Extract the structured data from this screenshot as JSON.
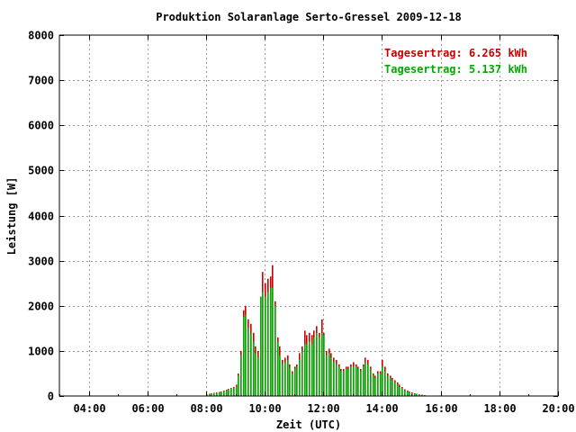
{
  "chart_data": {
    "type": "bar",
    "title": "Produktion Solaranlage Serto-Gressel 2009-12-18",
    "xlabel": "Zeit (UTC)",
    "ylabel": "Leistung [W]",
    "xlim": [
      "03:00",
      "20:00"
    ],
    "ylim": [
      0,
      8000
    ],
    "grid": true,
    "legend_placement": "top-right",
    "x_ticks": [
      "04:00",
      "06:00",
      "08:00",
      "10:00",
      "12:00",
      "14:00",
      "16:00",
      "18:00",
      "20:00"
    ],
    "y_ticks": [
      "0",
      "1000",
      "2000",
      "3000",
      "4000",
      "5000",
      "6000",
      "7000",
      "8000"
    ],
    "annotations": [
      {
        "text": "Tagesertrag: 6.265 kWh",
        "color": "#cc0000"
      },
      {
        "text": "Tagesertrag: 5.137 kWh",
        "color": "#00aa00"
      }
    ],
    "x": [
      "08:00",
      "08:05",
      "08:10",
      "08:15",
      "08:20",
      "08:25",
      "08:30",
      "08:35",
      "08:40",
      "08:45",
      "08:50",
      "08:55",
      "09:00",
      "09:05",
      "09:10",
      "09:15",
      "09:20",
      "09:25",
      "09:30",
      "09:35",
      "09:40",
      "09:45",
      "09:50",
      "09:55",
      "10:00",
      "10:05",
      "10:10",
      "10:15",
      "10:20",
      "10:25",
      "10:30",
      "10:35",
      "10:40",
      "10:45",
      "10:50",
      "10:55",
      "11:00",
      "11:05",
      "11:10",
      "11:15",
      "11:20",
      "11:25",
      "11:30",
      "11:35",
      "11:40",
      "11:45",
      "11:50",
      "11:55",
      "12:00",
      "12:05",
      "12:10",
      "12:15",
      "12:20",
      "12:25",
      "12:30",
      "12:35",
      "12:40",
      "12:45",
      "12:50",
      "12:55",
      "13:00",
      "13:05",
      "13:10",
      "13:15",
      "13:20",
      "13:25",
      "13:30",
      "13:35",
      "13:40",
      "13:45",
      "13:50",
      "13:55",
      "14:00",
      "14:05",
      "14:10",
      "14:15",
      "14:20",
      "14:25",
      "14:30",
      "14:35",
      "14:40",
      "14:45",
      "14:50",
      "14:55",
      "15:00",
      "15:05",
      "15:10",
      "15:15",
      "15:20",
      "15:25",
      "15:30",
      "15:35",
      "15:40"
    ],
    "series": [
      {
        "color": "#cc0000",
        "values": [
          40,
          50,
          60,
          70,
          80,
          90,
          100,
          120,
          140,
          160,
          180,
          200,
          250,
          500,
          1000,
          1900,
          2000,
          1700,
          1600,
          1400,
          1100,
          1000,
          2200,
          2750,
          2500,
          2600,
          2650,
          2900,
          2100,
          1300,
          1100,
          800,
          850,
          900,
          700,
          550,
          650,
          700,
          950,
          1100,
          1450,
          1350,
          1400,
          1350,
          1450,
          1550,
          1400,
          1700,
          1400,
          1000,
          1050,
          950,
          850,
          800,
          700,
          600,
          600,
          650,
          650,
          700,
          750,
          700,
          650,
          600,
          700,
          850,
          800,
          650,
          500,
          450,
          550,
          550,
          800,
          650,
          500,
          450,
          400,
          350,
          300,
          250,
          200,
          150,
          120,
          100,
          80,
          60,
          50,
          40,
          30,
          20,
          10,
          5,
          0
        ]
      },
      {
        "color": "#00aa00",
        "values": [
          35,
          45,
          55,
          65,
          70,
          80,
          90,
          110,
          125,
          145,
          160,
          180,
          220,
          450,
          900,
          1750,
          1800,
          1500,
          1400,
          1200,
          950,
          850,
          2200,
          2300,
          2200,
          2300,
          2400,
          2400,
          2000,
          1200,
          900,
          700,
          750,
          800,
          650,
          500,
          600,
          650,
          800,
          1000,
          1150,
          1150,
          1200,
          1150,
          1300,
          1400,
          1300,
          1400,
          1350,
          900,
          950,
          850,
          750,
          700,
          650,
          550,
          550,
          600,
          600,
          650,
          650,
          650,
          600,
          550,
          650,
          750,
          700,
          600,
          450,
          400,
          500,
          500,
          650,
          550,
          450,
          400,
          350,
          300,
          250,
          200,
          170,
          130,
          100,
          80,
          60,
          50,
          40,
          30,
          20,
          15,
          8,
          3,
          0
        ]
      }
    ]
  }
}
